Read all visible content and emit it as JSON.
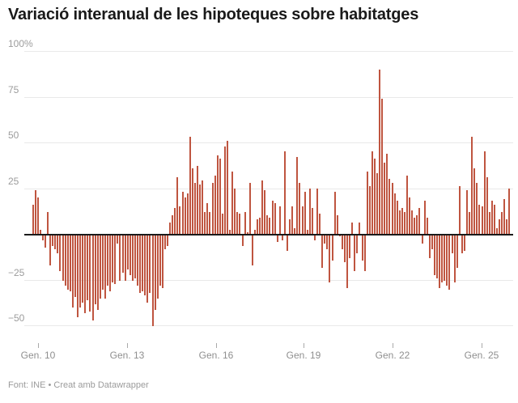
{
  "title": "Variació interanual de les hipoteques sobre habitatges",
  "footer": "Font: INE • Creat amb Datawrapper",
  "colors": {
    "bar": "#bf5540",
    "baseline": "#1a1a1a",
    "gridline": "#e9e9e9",
    "axis_text": "#9c9c9c",
    "tick_text": "#8f8f8f",
    "title_text": "#1a1a1a",
    "footer_text": "#9b9b9b"
  },
  "chart_data": {
    "type": "bar",
    "title": "Variació interanual de les hipoteques sobre habitatges",
    "unit": "%",
    "xlabel": "",
    "ylabel": "",
    "ylim": [
      -50,
      100
    ],
    "grid": "on",
    "legend": "none",
    "y_gridlines": [
      {
        "v": 100,
        "label": "100%"
      },
      {
        "v": 75,
        "label": "75"
      },
      {
        "v": 50,
        "label": "50"
      },
      {
        "v": 25,
        "label": "25"
      },
      {
        "v": -25,
        "label": "−25"
      },
      {
        "v": -50,
        "label": "−50"
      }
    ],
    "x_ticks": [
      {
        "label": "Gen. 10",
        "f": 0.0135
      },
      {
        "label": "Gen. 13",
        "f": 0.1993
      },
      {
        "label": "Gen. 16",
        "f": 0.3851
      },
      {
        "label": "Gen. 19",
        "f": 0.5676
      },
      {
        "label": "Gen. 22",
        "f": 0.7534
      },
      {
        "label": "Gen. 25",
        "f": 0.9392
      }
    ],
    "values": [
      16,
      24,
      20,
      2,
      -3,
      -7,
      12,
      -17,
      -6,
      -8,
      -10,
      -20,
      -25,
      -28,
      -30,
      -31,
      -40,
      -34,
      -45,
      -40,
      -37,
      -43,
      -36,
      -42,
      -47,
      -38,
      -41,
      -35,
      -30,
      -35,
      -28,
      -31,
      -26,
      -27,
      -5,
      -25,
      -21,
      -25,
      -19,
      -22,
      -25,
      -24,
      -28,
      -32,
      -31,
      -33,
      -37,
      -32,
      -50,
      -41,
      -35,
      -28,
      -29,
      -8,
      -6,
      6,
      10,
      14,
      31,
      15,
      23,
      20,
      22,
      53,
      36,
      28,
      37,
      27,
      29,
      12,
      17,
      12,
      28,
      32,
      43,
      41,
      11,
      48,
      51,
      2,
      34,
      25,
      12,
      11,
      -6,
      12,
      1,
      28,
      -17,
      2,
      8,
      9,
      29,
      24,
      10,
      9,
      18,
      17,
      -4,
      15,
      -3,
      45,
      -9,
      8,
      15,
      3,
      42,
      28,
      15,
      23,
      2,
      25,
      14,
      -3,
      25,
      11,
      -18,
      -5,
      -8,
      -26,
      -14,
      23,
      10,
      -1,
      -8,
      -15,
      -29,
      -13,
      6,
      -20,
      -10,
      6,
      -14,
      -20,
      34,
      26,
      45,
      41,
      33,
      90,
      74,
      39,
      44,
      30,
      28,
      22,
      18,
      13,
      14,
      12,
      32,
      20,
      13,
      9,
      10,
      14,
      -5,
      18,
      9,
      -13,
      -8,
      -22,
      -24,
      -29,
      -26,
      -25,
      -28,
      -30,
      -10,
      -26,
      -18,
      26,
      -10,
      -9,
      24,
      12,
      53,
      36,
      28,
      16,
      15,
      45,
      31,
      12,
      18,
      16,
      3,
      8,
      12,
      19,
      8,
      25
    ]
  }
}
